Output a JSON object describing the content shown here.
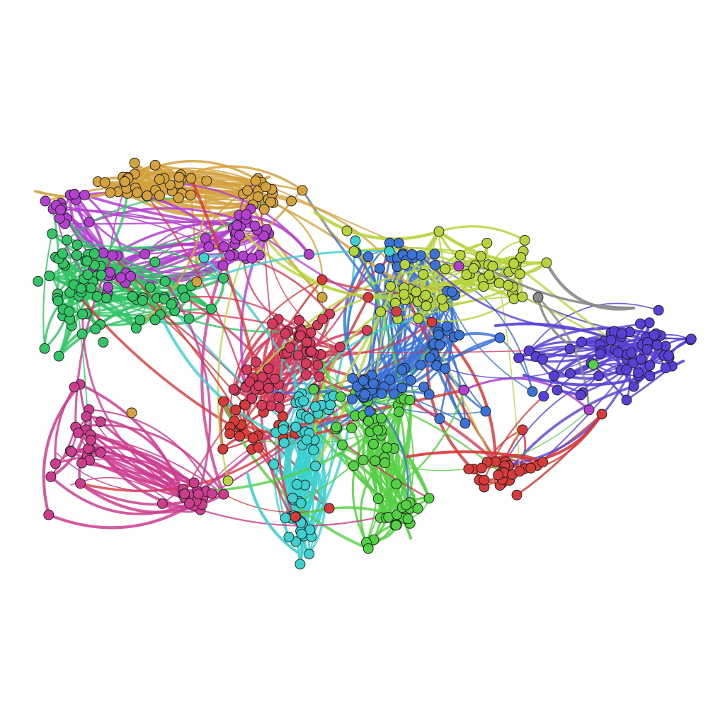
{
  "graph": {
    "background": "#ffffff",
    "node_outline": "#1a1a1a",
    "clusters": [
      {
        "name": "orange",
        "color": "#d4a23f"
      },
      {
        "name": "magenta",
        "color": "#b33fcf"
      },
      {
        "name": "green",
        "color": "#33c466"
      },
      {
        "name": "pink",
        "color": "#cc3d8f"
      },
      {
        "name": "red",
        "color": "#d63a3a"
      },
      {
        "name": "crimson",
        "color": "#d63a5c"
      },
      {
        "name": "cyan",
        "color": "#3dd0cf"
      },
      {
        "name": "lime",
        "color": "#55d044"
      },
      {
        "name": "blue",
        "color": "#3b72d6"
      },
      {
        "name": "yellow-green",
        "color": "#b8d43d"
      },
      {
        "name": "violet",
        "color": "#5a3fd6"
      },
      {
        "name": "gray",
        "color": "#8a8a8a"
      }
    ]
  }
}
